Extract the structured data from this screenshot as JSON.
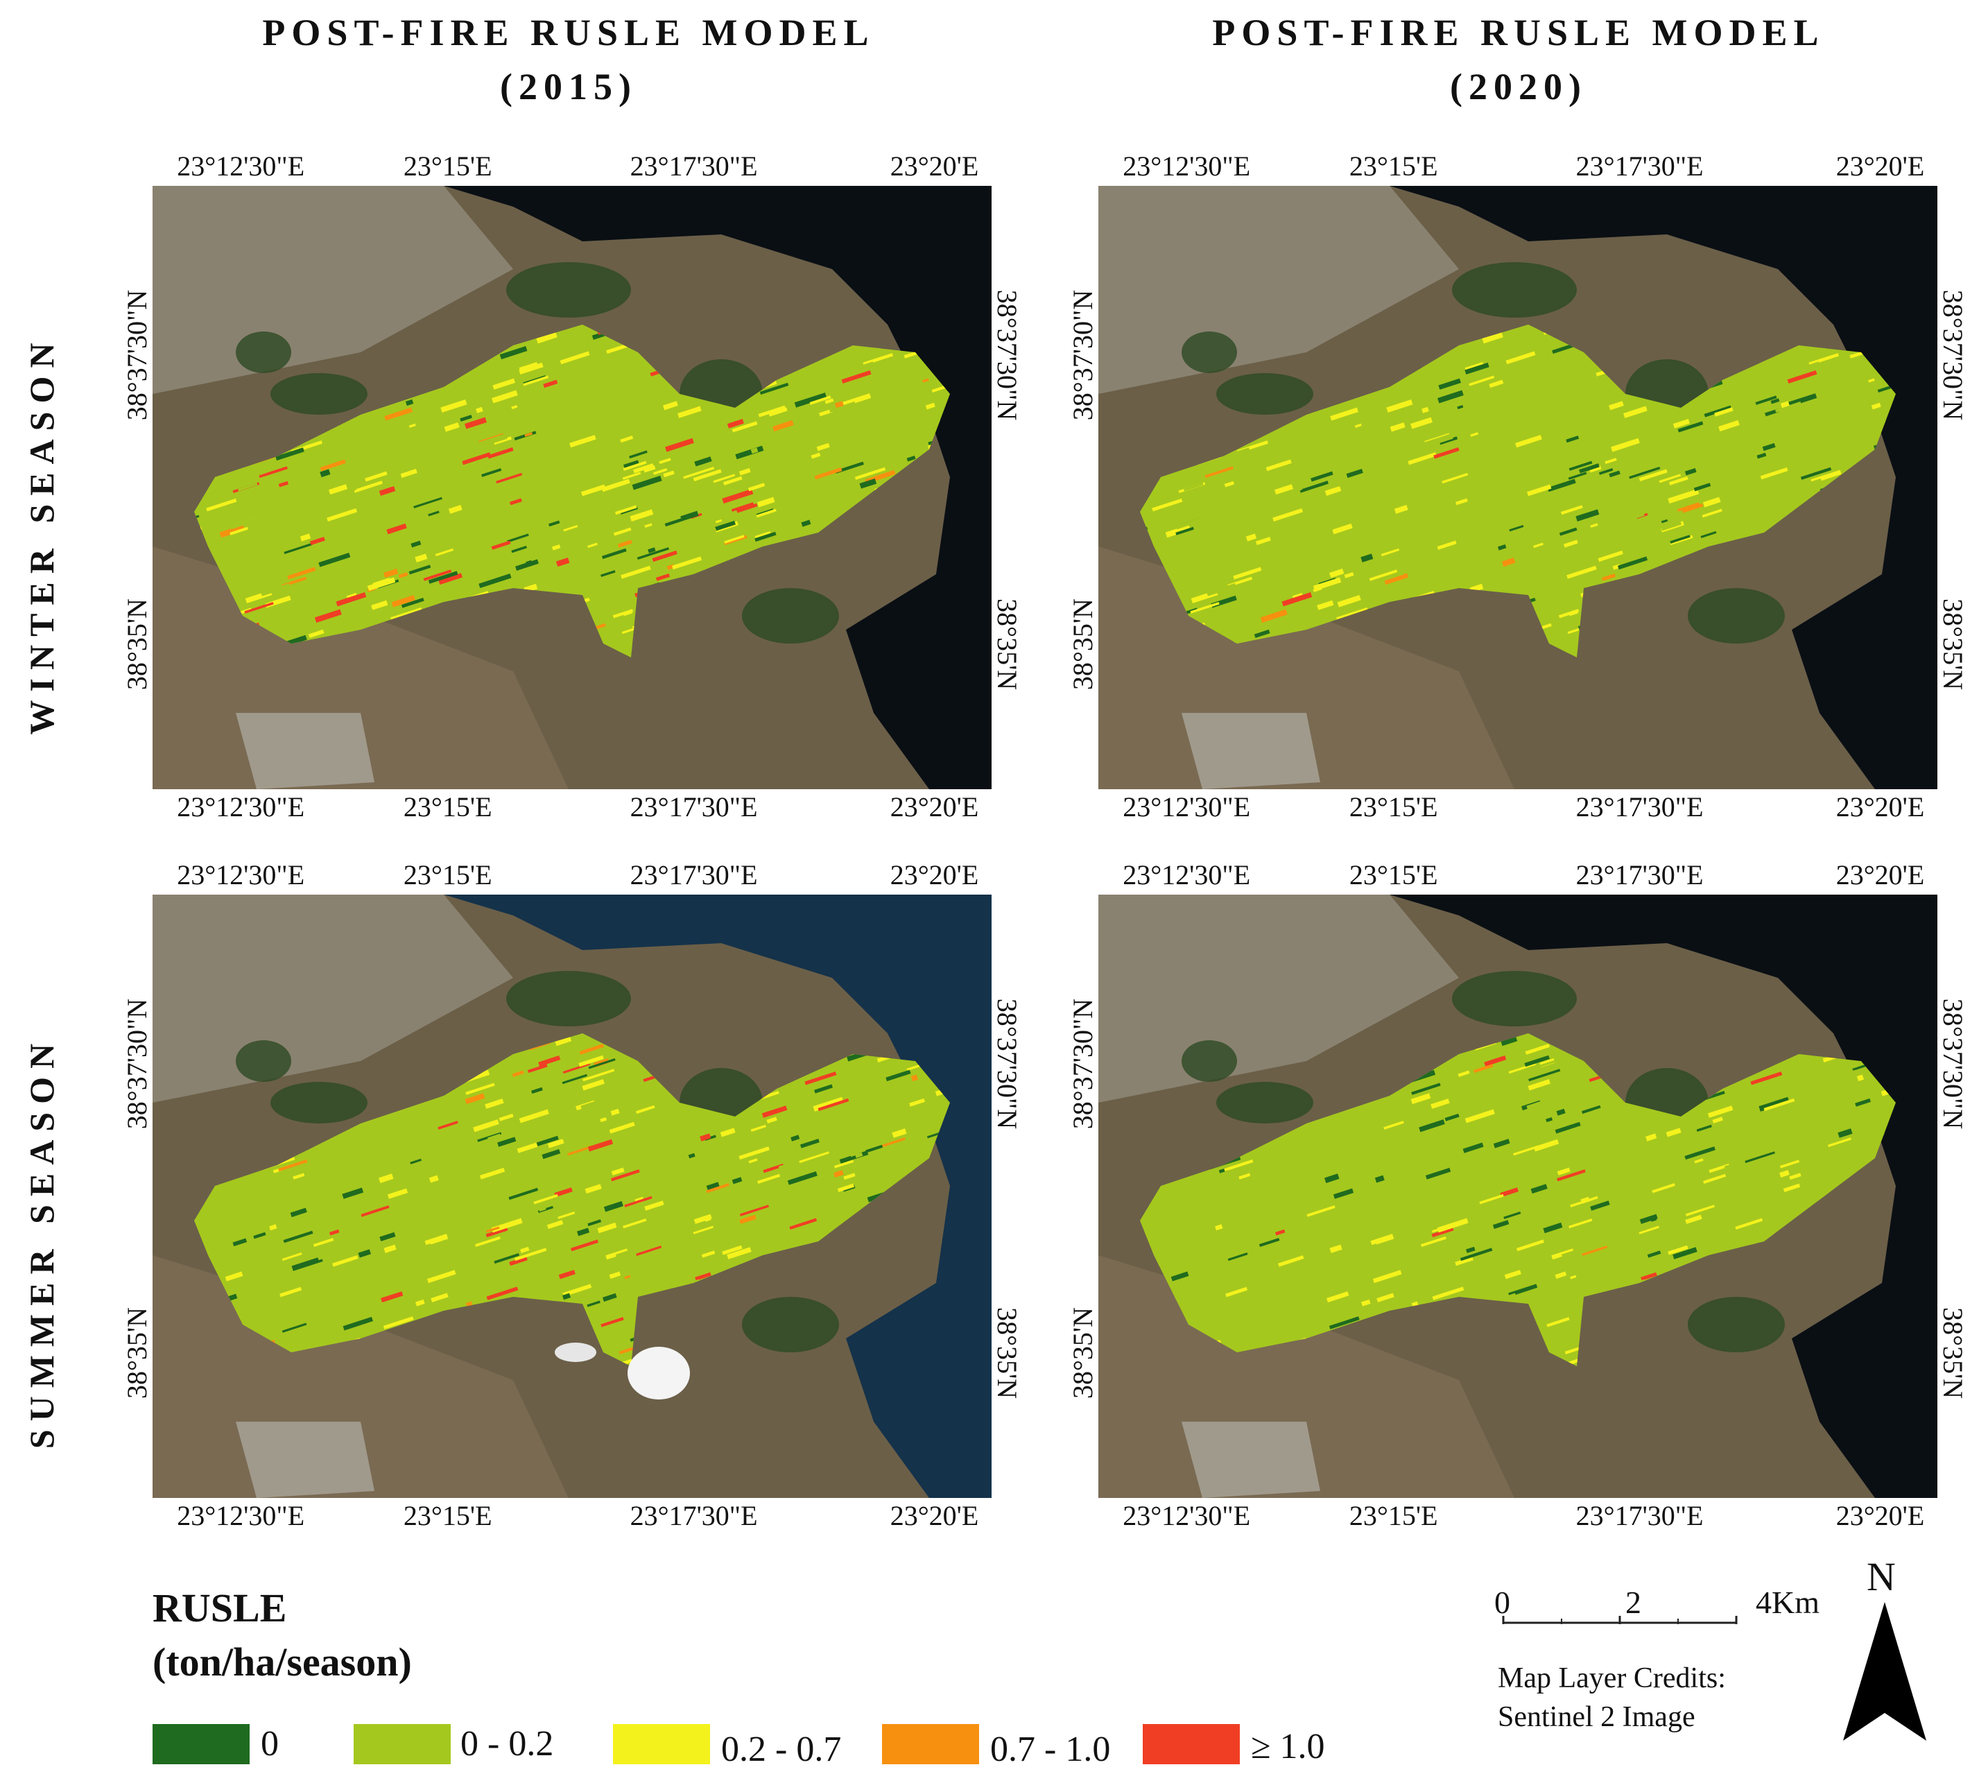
{
  "column_titles": [
    {
      "line1": "POST-FIRE RUSLE MODEL",
      "line2": "(2015)"
    },
    {
      "line1": "POST-FIRE RUSLE MODEL",
      "line2": "(2020)"
    }
  ],
  "row_titles": [
    "WINTER SEASON",
    "SUMMER SEASON"
  ],
  "longitude_labels": [
    "23°12'30\"E",
    "23°15'E",
    "23°17'30\"E",
    "23°20'E"
  ],
  "latitude_labels": [
    "38°37'30\"N",
    "38°35'N"
  ],
  "legend": {
    "title_line1": "RUSLE",
    "title_line2": "(ton/ha/season)",
    "classes": [
      {
        "label": "0",
        "color": "#1f6b1f"
      },
      {
        "label": "0 - 0.2",
        "color": "#a5c81e"
      },
      {
        "label": "0.2 - 0.7",
        "color": "#f4f21c"
      },
      {
        "label": "0.7 - 1.0",
        "color": "#f7900f"
      },
      {
        "label": "≥ 1.0",
        "color": "#f03e24"
      }
    ]
  },
  "scale_bar": {
    "labels": [
      "0",
      "2",
      "4Km"
    ]
  },
  "credits": {
    "line1": "Map Layer Credits:",
    "line2": "Sentinel 2 Image"
  },
  "north_arrow": {
    "label": "N"
  }
}
